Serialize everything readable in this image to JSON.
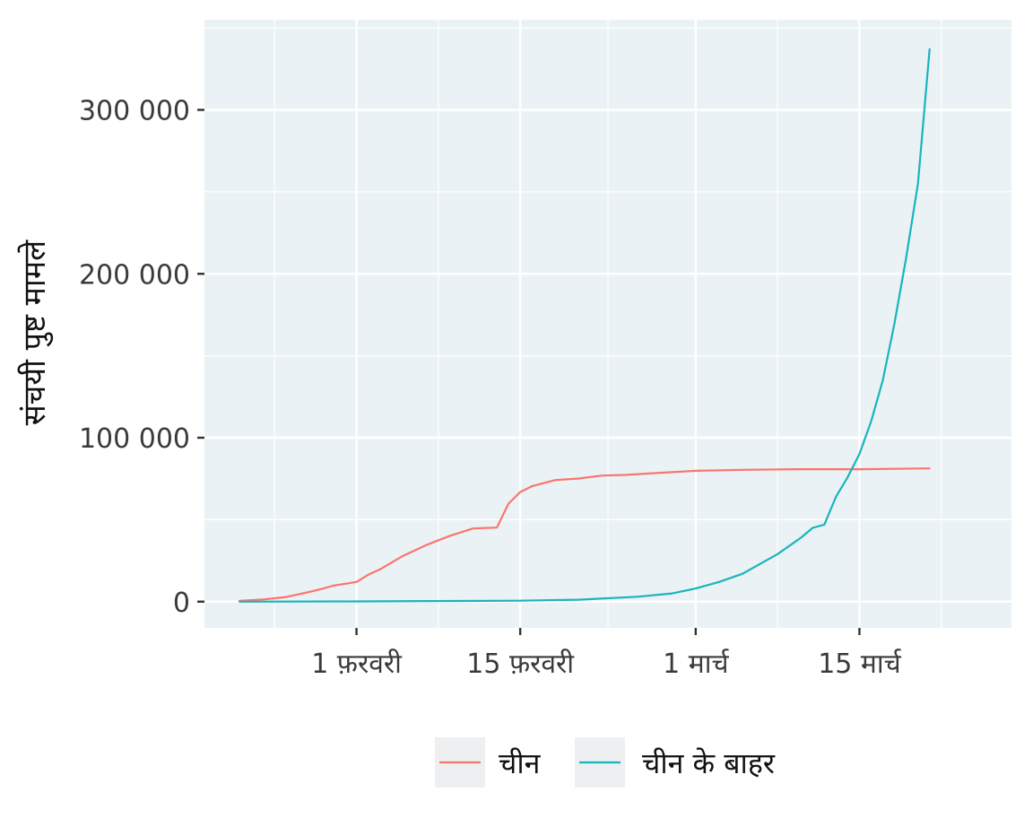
{
  "chart_data": {
    "type": "line",
    "ylabel": "संचयी पुष्ट मामले",
    "xlabel": "",
    "y_ticks": [
      {
        "value": 0,
        "label": "0"
      },
      {
        "value": 100000,
        "label": "100 000"
      },
      {
        "value": 200000,
        "label": "200 000"
      },
      {
        "value": 300000,
        "label": "300 000"
      }
    ],
    "x_ticks": [
      {
        "value": "2020-02-01",
        "label": "1 फ़रवरी"
      },
      {
        "value": "2020-02-15",
        "label": "15 फ़रवरी"
      },
      {
        "value": "2020-03-01",
        "label": "1 मार्च"
      },
      {
        "value": "2020-03-15",
        "label": "15 मार्च"
      }
    ],
    "xlim": [
      "2020-01-19",
      "2020-03-28"
    ],
    "ylim": [
      -16000,
      355000
    ],
    "grid": true,
    "legend_position": "bottom",
    "series": [
      {
        "name": "चीन",
        "color": "#F8766D",
        "x": [
          "2020-01-22",
          "2020-01-24",
          "2020-01-26",
          "2020-01-28",
          "2020-01-29",
          "2020-01-30",
          "2020-02-01",
          "2020-02-02",
          "2020-02-03",
          "2020-02-05",
          "2020-02-07",
          "2020-02-09",
          "2020-02-11",
          "2020-02-13",
          "2020-02-14",
          "2020-02-15",
          "2020-02-16",
          "2020-02-18",
          "2020-02-20",
          "2020-02-22",
          "2020-02-24",
          "2020-02-26",
          "2020-03-01",
          "2020-03-05",
          "2020-03-10",
          "2020-03-15",
          "2020-03-21"
        ],
        "values": [
          500,
          1300,
          2800,
          6000,
          7700,
          9700,
          12000,
          16400,
          19700,
          28000,
          34600,
          40200,
          44700,
          45200,
          59800,
          66900,
          70400,
          74200,
          75100,
          76900,
          77300,
          78200,
          79800,
          80400,
          80800,
          80800,
          81300
        ]
      },
      {
        "name": "चीन के बाहर",
        "color": "#19B4BD",
        "x": [
          "2020-01-22",
          "2020-02-01",
          "2020-02-10",
          "2020-02-15",
          "2020-02-20",
          "2020-02-25",
          "2020-02-28",
          "2020-03-01",
          "2020-03-03",
          "2020-03-05",
          "2020-03-07",
          "2020-03-08",
          "2020-03-09",
          "2020-03-10",
          "2020-03-11",
          "2020-03-12",
          "2020-03-13",
          "2020-03-14",
          "2020-03-15",
          "2020-03-16",
          "2020-03-17",
          "2020-03-18",
          "2020-03-19",
          "2020-03-20",
          "2020-03-21"
        ],
        "values": [
          0,
          140,
          400,
          600,
          1200,
          3000,
          5000,
          8000,
          12000,
          17000,
          25000,
          29000,
          34000,
          39000,
          45000,
          47000,
          64000,
          76000,
          90000,
          110000,
          135000,
          170000,
          210000,
          255000,
          337000
        ]
      }
    ]
  }
}
